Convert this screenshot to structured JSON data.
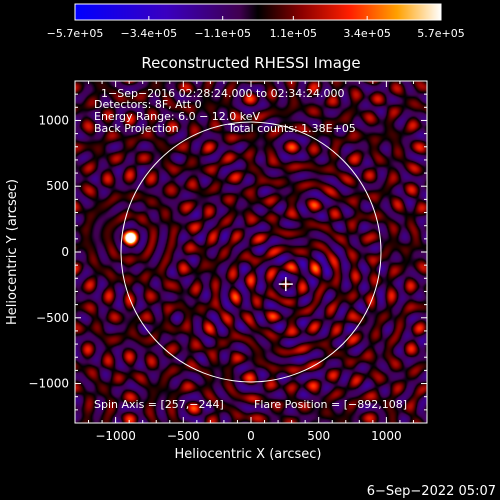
{
  "chart_data": {
    "type": "heatmap",
    "title": "Reconstructed RHESSI Image",
    "xlabel": "Heliocentric X (arcsec)",
    "ylabel": "Heliocentric Y (arcsec)",
    "xlim": [
      -1300,
      1300
    ],
    "ylim": [
      -1300,
      1300
    ],
    "xticks": [
      -1000,
      -500,
      0,
      500,
      1000
    ],
    "xtick_labels": [
      "−1000",
      "−500",
      "0",
      "500",
      "1000"
    ],
    "yticks": [
      -1000,
      -500,
      0,
      500,
      1000
    ],
    "ytick_labels": [
      "−1000",
      "−500",
      "0",
      "500",
      "1000"
    ],
    "colorbar": {
      "min": -570000,
      "max": 570000,
      "tick_values": [
        -570000,
        -340000,
        -110000,
        110000,
        340000,
        570000
      ],
      "tick_labels": [
        "−5.7e+05",
        "−3.4e+05",
        "−1.1e+05",
        "1.1e+05",
        "3.4e+05",
        "5.7e+05"
      ]
    },
    "info_lines": [
      "1−Sep−2016 02:28:24.000 to 02:34:24.000",
      "Detectors: 8F, Att 0",
      "Energy Range: 6.0 − 12.0 keV",
      "Back Projection",
      "Total counts: 1.38E+05"
    ],
    "spin_axis_label": "Spin Axis = [257,−244]",
    "flare_position_label": "Flare Position = [−892,108]",
    "solar_limb": {
      "center": [
        0,
        0
      ],
      "radius_arcsec": 960
    },
    "flare_source": {
      "x": -892,
      "y": 108
    },
    "spin_axis_marker": {
      "x": 257,
      "y": -244
    }
  },
  "timestamp": "6−Sep−2022 05:07"
}
